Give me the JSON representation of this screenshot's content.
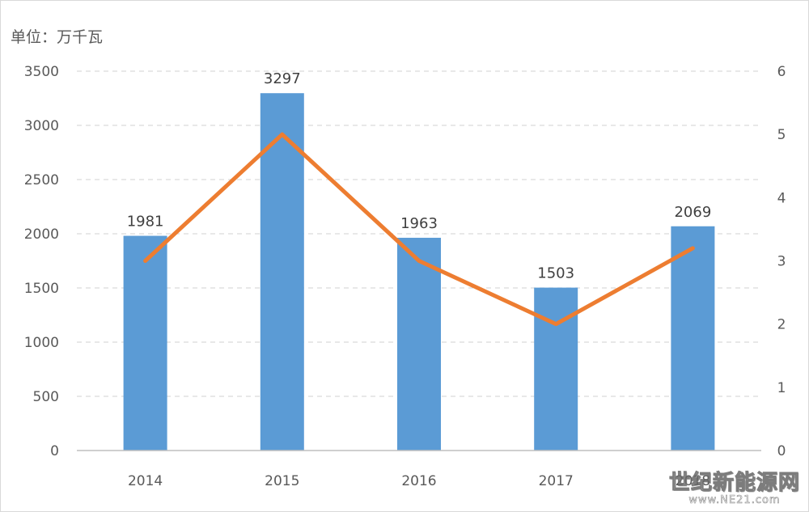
{
  "unit_label": "单位：万千瓦",
  "watermark": {
    "name": "世纪新能源网",
    "url": "www.NE21.com"
  },
  "colors": {
    "bar": "#5b9bd5",
    "line": "#ed7d31",
    "grid": "#d9d9d9",
    "axis_text": "#595959",
    "data_label": "#404040"
  },
  "chart_data": {
    "type": "bar",
    "categories": [
      "2014",
      "2015",
      "2016",
      "2017",
      "2018"
    ],
    "series": [
      {
        "type": "bar",
        "axis": "left",
        "values": [
          1981,
          3297,
          1963,
          1503,
          2069
        ],
        "data_labels": [
          "1981",
          "3297",
          "1963",
          "1503",
          "2069"
        ]
      },
      {
        "type": "line",
        "axis": "right",
        "values": [
          3.0,
          5.0,
          3.0,
          2.0,
          3.2
        ]
      }
    ],
    "y_left": {
      "ylim": [
        0,
        3500
      ],
      "ticks": [
        "0",
        "500",
        "1000",
        "1500",
        "2000",
        "2500",
        "3000",
        "3500"
      ]
    },
    "y_right": {
      "ylim": [
        0,
        6
      ],
      "ticks": [
        "0",
        "1",
        "2",
        "3",
        "4",
        "5",
        "6"
      ]
    },
    "grid": "horizontal-dashed",
    "legend": "none"
  }
}
